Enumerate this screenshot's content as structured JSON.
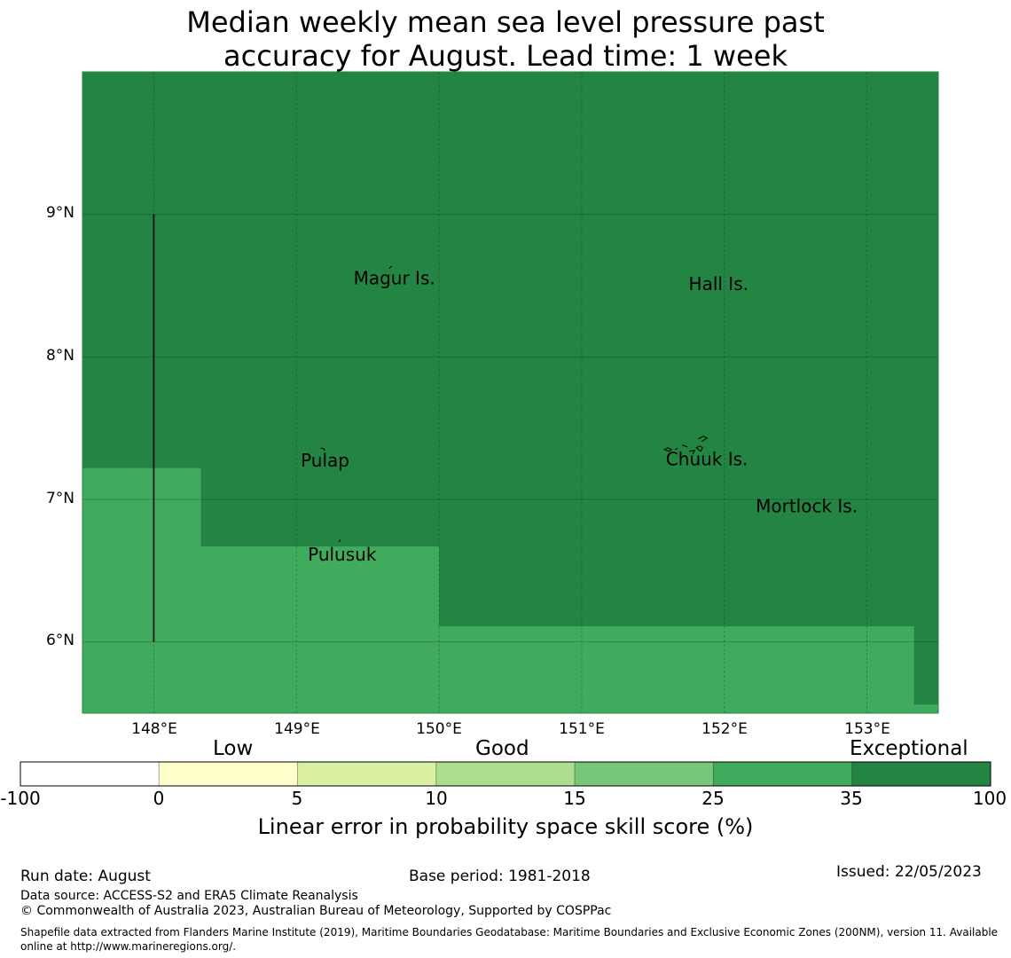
{
  "title_line1": "Median weekly mean sea level pressure past",
  "title_line2": "accuracy for August. Lead time: 1 week",
  "map": {
    "lon_range": [
      147.5,
      153.5
    ],
    "lat_range": [
      5.5,
      10.0
    ],
    "lat_ticks": [
      "9°N",
      "8°N",
      "7°N",
      "6°N"
    ],
    "lon_ticks": [
      "148°E",
      "149°E",
      "150°E",
      "151°E",
      "152°E",
      "153°E"
    ],
    "places": [
      {
        "name": "Magur Is.",
        "lon": 149.4,
        "lat": 8.51
      },
      {
        "name": "Hall Is.",
        "lon": 151.75,
        "lat": 8.47
      },
      {
        "name": "Pulap",
        "lon": 149.03,
        "lat": 7.23
      },
      {
        "name": "Chuuk Is.",
        "lon": 151.59,
        "lat": 7.24
      },
      {
        "name": "Mortlock Is.",
        "lon": 152.22,
        "lat": 6.91
      },
      {
        "name": "Pulusuk",
        "lon": 149.08,
        "lat": 6.57
      }
    ],
    "regions": [
      {
        "category": "35-100",
        "color": "#238443",
        "lon": [
          147.5,
          153.5
        ],
        "lat": [
          5.5,
          10.0
        ]
      },
      {
        "category": "25-35",
        "color": "#41ab5d",
        "lon": [
          147.5,
          148.33
        ],
        "lat": [
          5.5,
          7.22
        ]
      },
      {
        "category": "25-35",
        "color": "#41ab5d",
        "lon": [
          148.33,
          150.0
        ],
        "lat": [
          5.5,
          6.67
        ]
      },
      {
        "category": "25-35",
        "color": "#41ab5d",
        "lon": [
          150.0,
          153.33
        ],
        "lat": [
          5.5,
          6.11
        ]
      },
      {
        "category": "25-35",
        "color": "#41ab5d",
        "lon": [
          153.33,
          153.5
        ],
        "lat": [
          5.5,
          5.56
        ]
      }
    ],
    "boundary_line": {
      "lon": 148.0,
      "lat": [
        6.0,
        9.0
      ]
    }
  },
  "legend": {
    "categories": [
      "Low",
      "Good",
      "Exceptional"
    ],
    "ticks": [
      "-100",
      "0",
      "5",
      "10",
      "15",
      "25",
      "35",
      "100"
    ],
    "colors": [
      "#ffffff",
      "#ffffcc",
      "#d9f0a3",
      "#addd8e",
      "#78c679",
      "#41ab5d",
      "#238443"
    ],
    "title": "Linear error in probability space skill score (%)"
  },
  "footer": {
    "run_date": "Run date: August",
    "base_period": "Base period: 1981-2018",
    "issued": "Issued: 22/05/2023",
    "data_source": "Data source: ACCESS-S2 and ERA5 Climate Reanalysis",
    "copyright": "© Commonwealth of Australia 2023, Australian Bureau of Meteorology, Supported by COSPPac",
    "shapefile_line1": "Shapefile data extracted from Flanders Marine Institute (2019), Maritime Boundaries Geodatabase: Maritime Boundaries and Exclusive Economic Zones (200NM), version 11. Available",
    "shapefile_line2": "online at http://www.marineregions.org/."
  }
}
